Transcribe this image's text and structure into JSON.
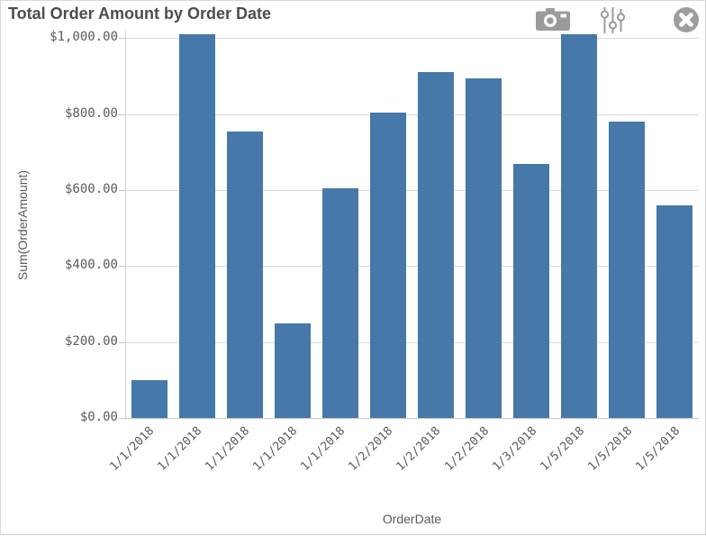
{
  "header": {
    "title": "Total Order Amount by Order Date",
    "icons": [
      {
        "name": "camera-icon",
        "action": "take snapshot"
      },
      {
        "name": "sliders-icon",
        "action": "exploration menu"
      },
      {
        "name": "close-icon",
        "action": "close"
      }
    ],
    "icon_color": "#9b9b9b"
  },
  "chart_data": {
    "type": "bar",
    "title": "Total Order Amount by Order Date",
    "xlabel": "OrderDate",
    "ylabel": "Sum(OrderAmount)",
    "categories": [
      "1/1/2018",
      "1/1/2018",
      "1/1/2018",
      "1/1/2018",
      "1/1/2018",
      "1/2/2018",
      "1/2/2018",
      "1/2/2018",
      "1/3/2018",
      "1/5/2018",
      "1/5/2018",
      "1/5/2018"
    ],
    "values": [
      100,
      1010,
      755,
      250,
      605,
      805,
      910,
      895,
      670,
      1010,
      780,
      560
    ],
    "ylim": [
      0,
      1020
    ],
    "yticks": [
      0,
      200,
      400,
      600,
      800,
      1000
    ],
    "ytick_labels": [
      "$0.00",
      "$200.00",
      "$400.00",
      "$600.00",
      "$800.00",
      "$1,000.00"
    ],
    "grid": true,
    "legend": false,
    "bar_color": "#4678a9",
    "gridline_color": "#dadada",
    "tick_label_color": "#5a5a5a",
    "title_color": "#4d4d4d"
  }
}
